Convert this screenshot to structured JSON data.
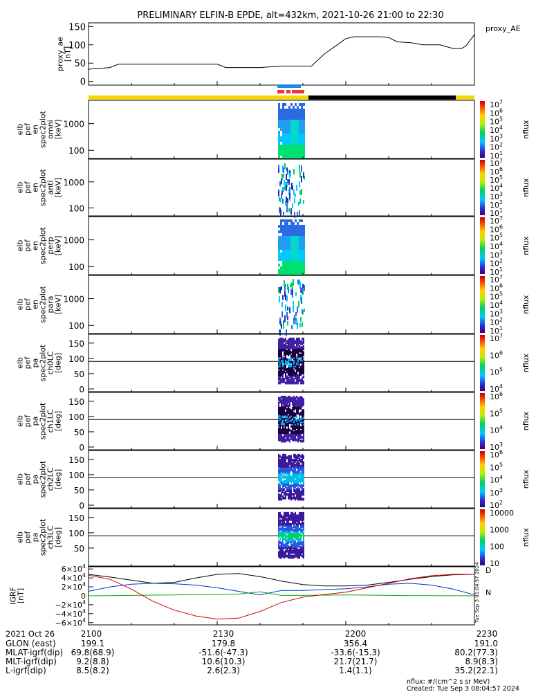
{
  "title": "PRELIMINARY ELFIN-B EPDE, alt=432km, 2021-10-26 21:00 to 22:30",
  "colors": {
    "bar_yellow": "#f5d60a",
    "bar_black": "#000000",
    "bar_blue": "#1e88e5",
    "bar_red": "#e53935",
    "bx": "#0033cc",
    "by": "#00aa00",
    "bz": "#cc0000",
    "bt": "#000000"
  },
  "chart_data": [
    {
      "id": "proxy_ae",
      "type": "line",
      "ylabel": [
        "proxy_ae",
        "[nT]"
      ],
      "legend": "proxy_AE",
      "ylim": [
        -10,
        160
      ],
      "yticks": [
        "0",
        "50",
        "100",
        "150"
      ],
      "x_minutes": [
        0,
        1,
        3,
        5,
        7,
        9,
        11,
        15,
        20,
        25,
        30,
        32,
        35,
        40,
        45,
        47,
        50,
        52,
        55,
        58,
        60,
        62,
        65,
        68,
        70,
        72,
        75,
        78,
        80,
        82,
        85,
        87,
        88,
        90
      ],
      "values": [
        33,
        35,
        36,
        38,
        47,
        47,
        47,
        47,
        47,
        47,
        47,
        38,
        38,
        38,
        42,
        42,
        42,
        42,
        75,
        100,
        117,
        122,
        122,
        122,
        120,
        108,
        106,
        100,
        100,
        100,
        90,
        90,
        97,
        128
      ]
    },
    {
      "id": "science_zone_bars",
      "type": "timeline",
      "segments": [
        {
          "from": 0,
          "to": 0,
          "color": "bar_yellow"
        }
      ]
    },
    {
      "id": "en_omni",
      "type": "heatmap",
      "ylabel": [
        "elb",
        "pef",
        "en",
        "spec2plot",
        "omni",
        "[keV]"
      ],
      "yticks": [
        "100",
        "1000"
      ],
      "colorbar": {
        "label": "nflux",
        "ticks": [
          "10^7",
          "10^6",
          "10^5",
          "10^4",
          "10^3",
          "10^2",
          "10^1"
        ]
      }
    },
    {
      "id": "en_anti",
      "type": "heatmap",
      "ylabel": [
        "elb",
        "pef",
        "en",
        "spec2plot",
        "anti",
        "[keV]"
      ],
      "yticks": [
        "100",
        "1000"
      ],
      "colorbar": {
        "label": "nflux",
        "ticks": [
          "10^7",
          "10^6",
          "10^5",
          "10^4",
          "10^3",
          "10^2",
          "10^1"
        ]
      }
    },
    {
      "id": "en_perp",
      "type": "heatmap",
      "ylabel": [
        "elb",
        "pef",
        "en",
        "spec2plot",
        "perp",
        "[keV]"
      ],
      "yticks": [
        "100",
        "1000"
      ],
      "colorbar": {
        "label": "nflux",
        "ticks": [
          "10^7",
          "10^6",
          "10^5",
          "10^4",
          "10^3",
          "10^2",
          "10^1"
        ]
      }
    },
    {
      "id": "en_para",
      "type": "heatmap",
      "ylabel": [
        "elb",
        "pef",
        "en",
        "spec2plot",
        "para",
        "[keV]"
      ],
      "yticks": [
        "100",
        "1000"
      ],
      "colorbar": {
        "label": "nflux",
        "ticks": [
          "10^7",
          "10^6",
          "10^5",
          "10^4",
          "10^3",
          "10^2",
          "10^1"
        ]
      }
    },
    {
      "id": "pa_ch0",
      "type": "heatmap",
      "ylabel": [
        "elb",
        "pef",
        "pa",
        "spec2plot",
        "ch0LC",
        "[deg]"
      ],
      "yticks": [
        "0",
        "50",
        "100",
        "150"
      ],
      "colorbar": {
        "label": "nflux",
        "ticks": [
          "10^7",
          "10^6",
          "10^5",
          "10^4"
        ]
      }
    },
    {
      "id": "pa_ch1",
      "type": "heatmap",
      "ylabel": [
        "elb",
        "pef",
        "pa",
        "spec2plot",
        "ch1LC",
        "[deg]"
      ],
      "yticks": [
        "0",
        "50",
        "100",
        "150"
      ],
      "colorbar": {
        "label": "nflux",
        "ticks": [
          "10^6",
          "10^5",
          "10^4",
          "10^3"
        ]
      }
    },
    {
      "id": "pa_ch2",
      "type": "heatmap",
      "ylabel": [
        "elb",
        "pef",
        "pa",
        "spec2plot",
        "ch2LC",
        "[deg]"
      ],
      "yticks": [
        "0",
        "50",
        "100",
        "150"
      ],
      "colorbar": {
        "label": "nflux",
        "ticks": [
          "10^6",
          "10^5",
          "10^4",
          "10^3",
          "10^2"
        ]
      }
    },
    {
      "id": "pa_ch3",
      "type": "heatmap",
      "ylabel": [
        "elb",
        "pef",
        "pa",
        "spec2plot",
        "ch3LC",
        "[deg]"
      ],
      "yticks": [
        "50",
        "100",
        "150"
      ],
      "colorbar": {
        "label": "nflux",
        "ticks": [
          "10000",
          "1000",
          "100",
          "10"
        ]
      }
    },
    {
      "id": "igrf",
      "type": "line",
      "ylabel": [
        "IGRF",
        "[nT]"
      ],
      "yticks": [
        "6×10^4",
        "4×10^4",
        "2×10^4",
        "0",
        "−2×10^4",
        "−4×10^4",
        "−6×10^4"
      ],
      "ylim": [
        -65000,
        65000
      ],
      "legend": [
        "D",
        "N"
      ],
      "x_minutes": [
        0,
        5,
        10,
        15,
        20,
        25,
        30,
        35,
        40,
        45,
        50,
        55,
        60,
        65,
        70,
        75,
        80,
        85,
        90
      ],
      "series": [
        {
          "color": "bt",
          "values": [
            48000,
            42000,
            35000,
            28000,
            30000,
            40000,
            48000,
            50000,
            43000,
            33000,
            25000,
            22000,
            22000,
            24000,
            30000,
            37000,
            43000,
            47000,
            48000
          ]
        },
        {
          "color": "bx",
          "values": [
            10000,
            20000,
            26000,
            28000,
            27000,
            24000,
            18000,
            10000,
            2000,
            12000,
            12000,
            14000,
            16000,
            20000,
            26000,
            28000,
            24000,
            15000,
            2000
          ]
        },
        {
          "color": "by",
          "values": [
            0,
            500,
            1000,
            1500,
            2000,
            2500,
            3000,
            4000,
            9000,
            1000,
            1000,
            1500,
            2000,
            1500,
            1000,
            500,
            300,
            100,
            0
          ]
        },
        {
          "color": "bz",
          "values": [
            46000,
            37000,
            15000,
            -12000,
            -32000,
            -45000,
            -52000,
            -50000,
            -35000,
            -15000,
            -3000,
            3000,
            8000,
            18000,
            28000,
            38000,
            45000,
            48000,
            48000
          ]
        }
      ]
    }
  ],
  "ae_legend": "proxy_AE",
  "footer": {
    "date_label": "2021 Oct 26",
    "time_ticks": [
      "2100",
      "2130",
      "2200",
      "2230"
    ],
    "rows": [
      {
        "label": "GLON (east)",
        "values": [
          "199.1",
          "179.8",
          "356.4",
          "191.0"
        ]
      },
      {
        "label": "MLAT-igrf(dip)",
        "values": [
          "69.8(68.9)",
          "-51.6(-47.3)",
          "-33.6(-15.3)",
          "80.2(77.3)"
        ]
      },
      {
        "label": "MLT-igrf(dip)",
        "values": [
          "9.2(8.8)",
          "10.6(10.3)",
          "21.7(21.7)",
          "8.9(8.3)"
        ]
      },
      {
        "label": "L-igrf(dip)",
        "values": [
          "8.5(8.2)",
          "2.6(2.3)",
          "1.4(1.1)",
          "35.2(22.1)"
        ]
      }
    ],
    "units_note": "nflux: #/(cm^2 s sr MeV)",
    "created": "Created: Tue Sep  3 08:04:57 2024",
    "side_stamp": "Tue Sep 3 01:04:57 2024"
  }
}
